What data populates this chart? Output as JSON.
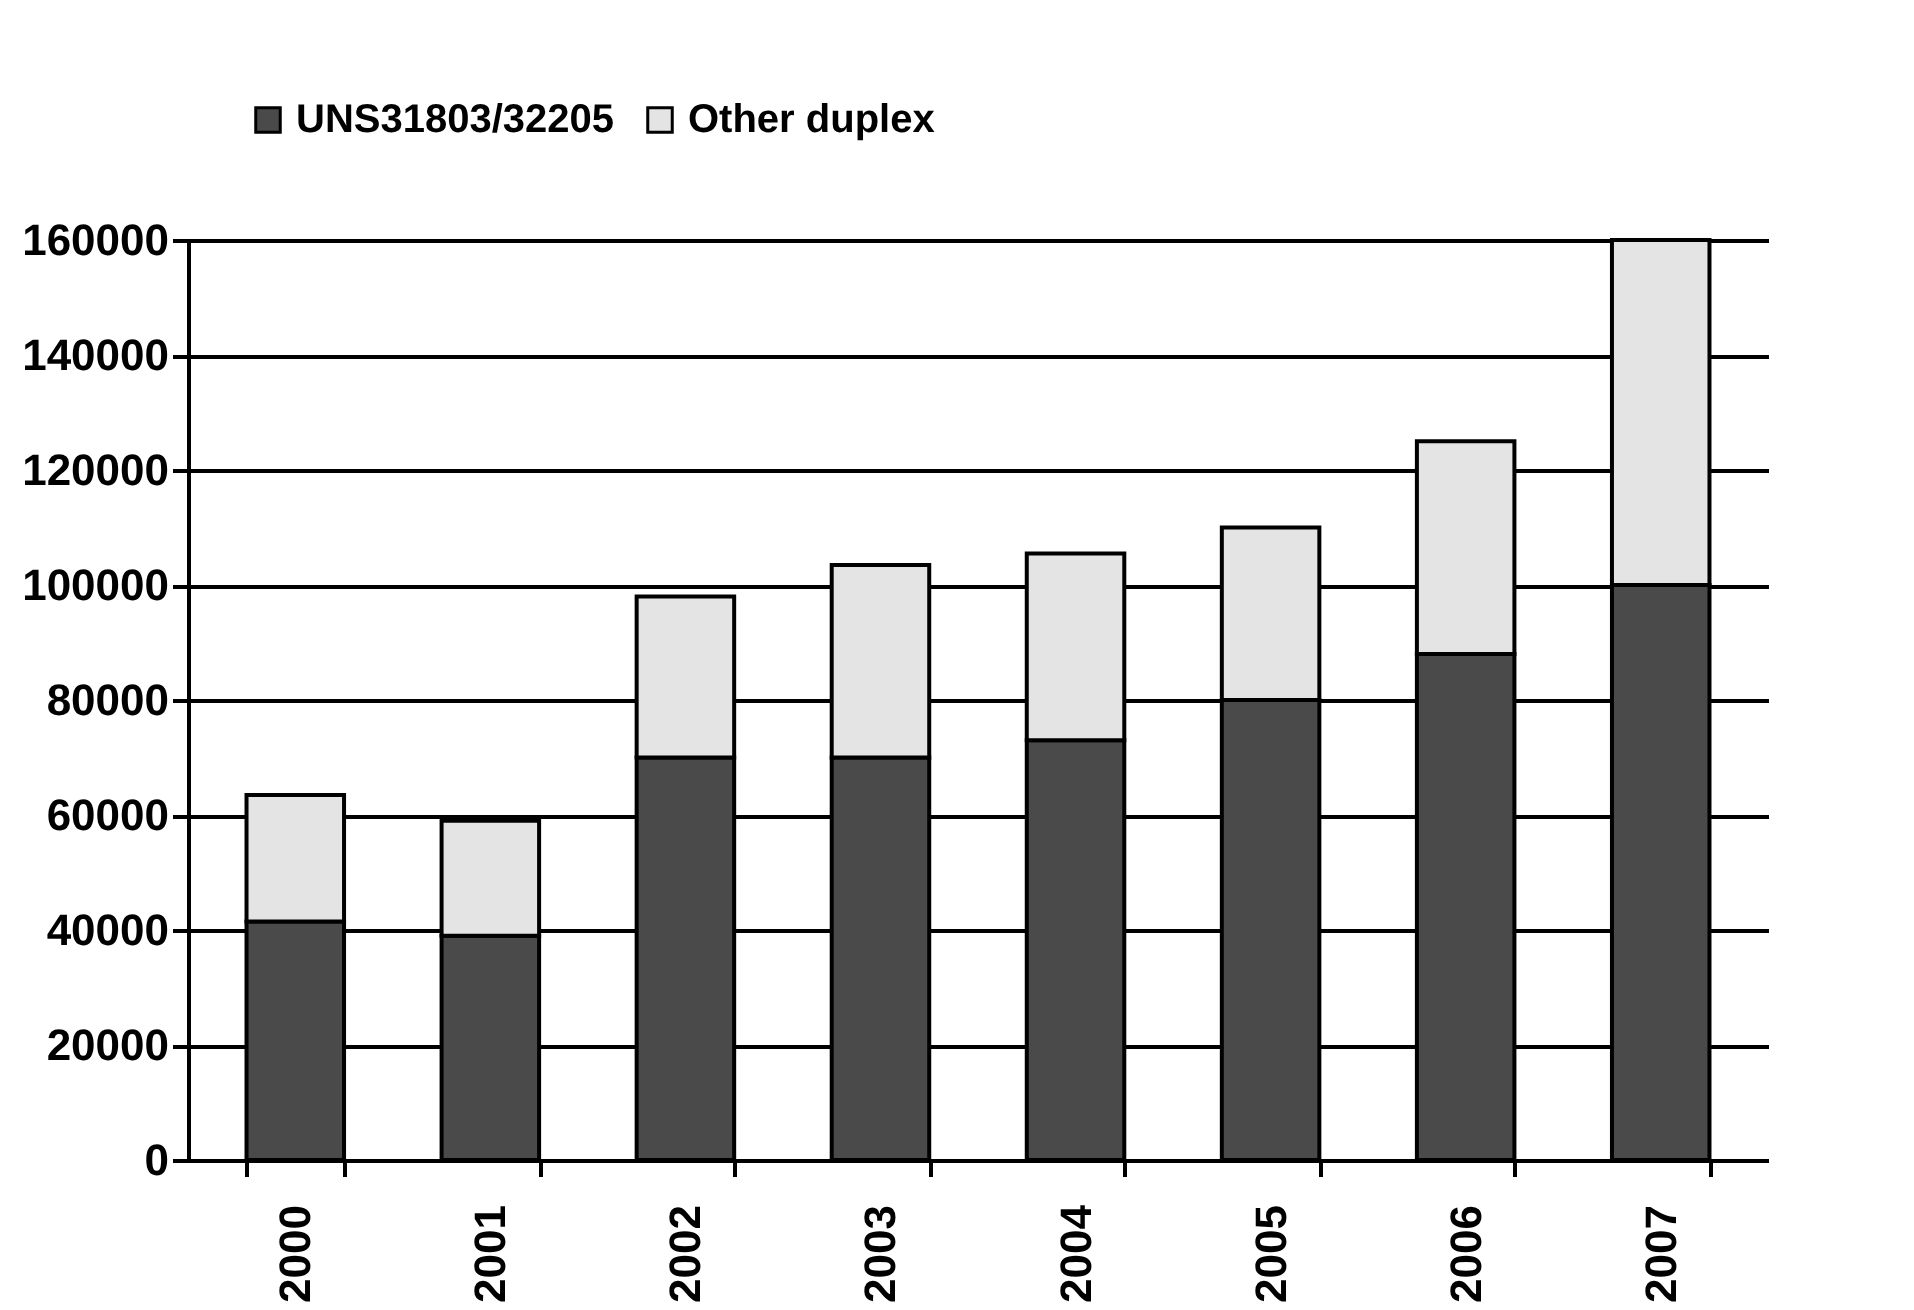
{
  "chart_data": {
    "type": "bar",
    "stacked": true,
    "categories": [
      "2000",
      "2001",
      "2002",
      "2003",
      "2004",
      "2005",
      "2006",
      "2007"
    ],
    "series": [
      {
        "name": "UNS31803/32205",
        "color": "#4a4a4a",
        "values": [
          41500,
          39000,
          70000,
          70000,
          73000,
          80000,
          88000,
          100000
        ]
      },
      {
        "name": "Other duplex",
        "color": "#e4e4e4",
        "values": [
          22000,
          20000,
          28000,
          33500,
          32500,
          30000,
          37000,
          60000
        ]
      }
    ],
    "ylim": [
      0,
      160000
    ],
    "yticks": [
      0,
      20000,
      40000,
      60000,
      80000,
      100000,
      120000,
      140000,
      160000
    ],
    "grid": "y",
    "legend": "top"
  }
}
